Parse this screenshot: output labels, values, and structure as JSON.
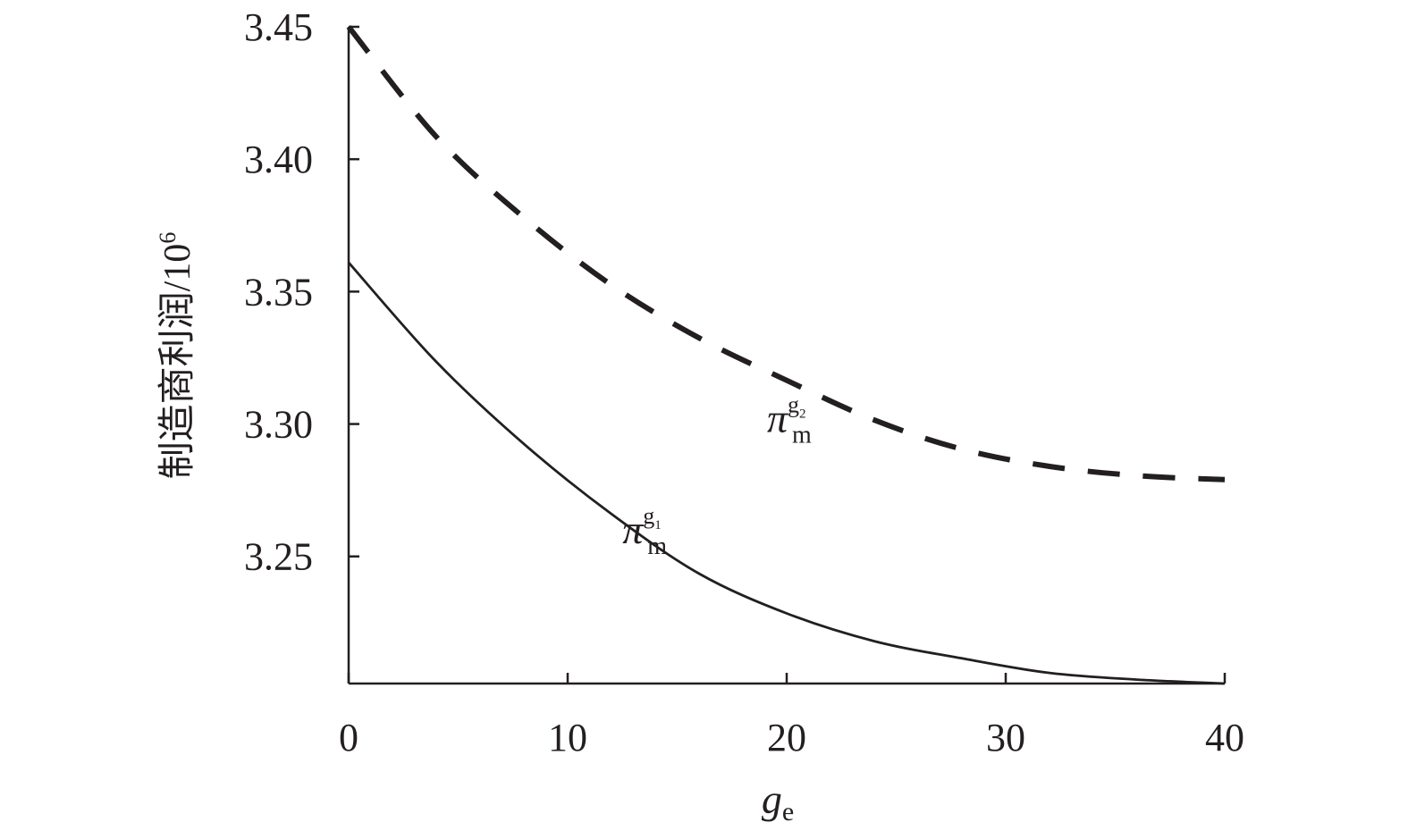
{
  "chart_data": {
    "type": "line",
    "title": "",
    "xlabel": {
      "main": "g",
      "sub": "e"
    },
    "ylabel": {
      "main": "制造商利润/10",
      "sup": "6"
    },
    "xlim": [
      0,
      40
    ],
    "ylim": [
      3.202,
      3.45
    ],
    "x_ticks": [
      {
        "value": 0,
        "label": "0"
      },
      {
        "value": 10,
        "label": "10"
      },
      {
        "value": 20,
        "label": "20"
      },
      {
        "value": 30,
        "label": "30"
      },
      {
        "value": 40,
        "label": "40"
      }
    ],
    "y_ticks": [
      {
        "value": 3.25,
        "label": "3.25"
      },
      {
        "value": 3.3,
        "label": "3.30"
      },
      {
        "value": 3.35,
        "label": "3.35"
      },
      {
        "value": 3.4,
        "label": "3.40"
      },
      {
        "value": 3.45,
        "label": "3.45"
      }
    ],
    "grid": false,
    "series": [
      {
        "name": {
          "main": "π",
          "sub": "m",
          "sup": "g",
          "supsub": "1"
        },
        "style": "solid",
        "color": "#231f20",
        "label_at": {
          "x": 12.5,
          "y": 3.255
        },
        "x": [
          0,
          4,
          8,
          12,
          16,
          20,
          24,
          28,
          32,
          36,
          40
        ],
        "y": [
          3.361,
          3.3235,
          3.2925,
          3.266,
          3.2435,
          3.2285,
          3.218,
          3.2115,
          3.206,
          3.2035,
          3.202
        ]
      },
      {
        "name": {
          "main": "π",
          "sub": "m",
          "sup": "g",
          "supsub": "2"
        },
        "style": "dashed",
        "color": "#231f20",
        "label_at": {
          "x": 19.1,
          "y": 3.297
        },
        "x": [
          0,
          4,
          8,
          12,
          16,
          20,
          24,
          28,
          32,
          36,
          40
        ],
        "y": [
          3.45,
          3.4085,
          3.378,
          3.3525,
          3.3325,
          3.3165,
          3.3015,
          3.2905,
          3.284,
          3.2805,
          3.279
        ]
      }
    ]
  }
}
